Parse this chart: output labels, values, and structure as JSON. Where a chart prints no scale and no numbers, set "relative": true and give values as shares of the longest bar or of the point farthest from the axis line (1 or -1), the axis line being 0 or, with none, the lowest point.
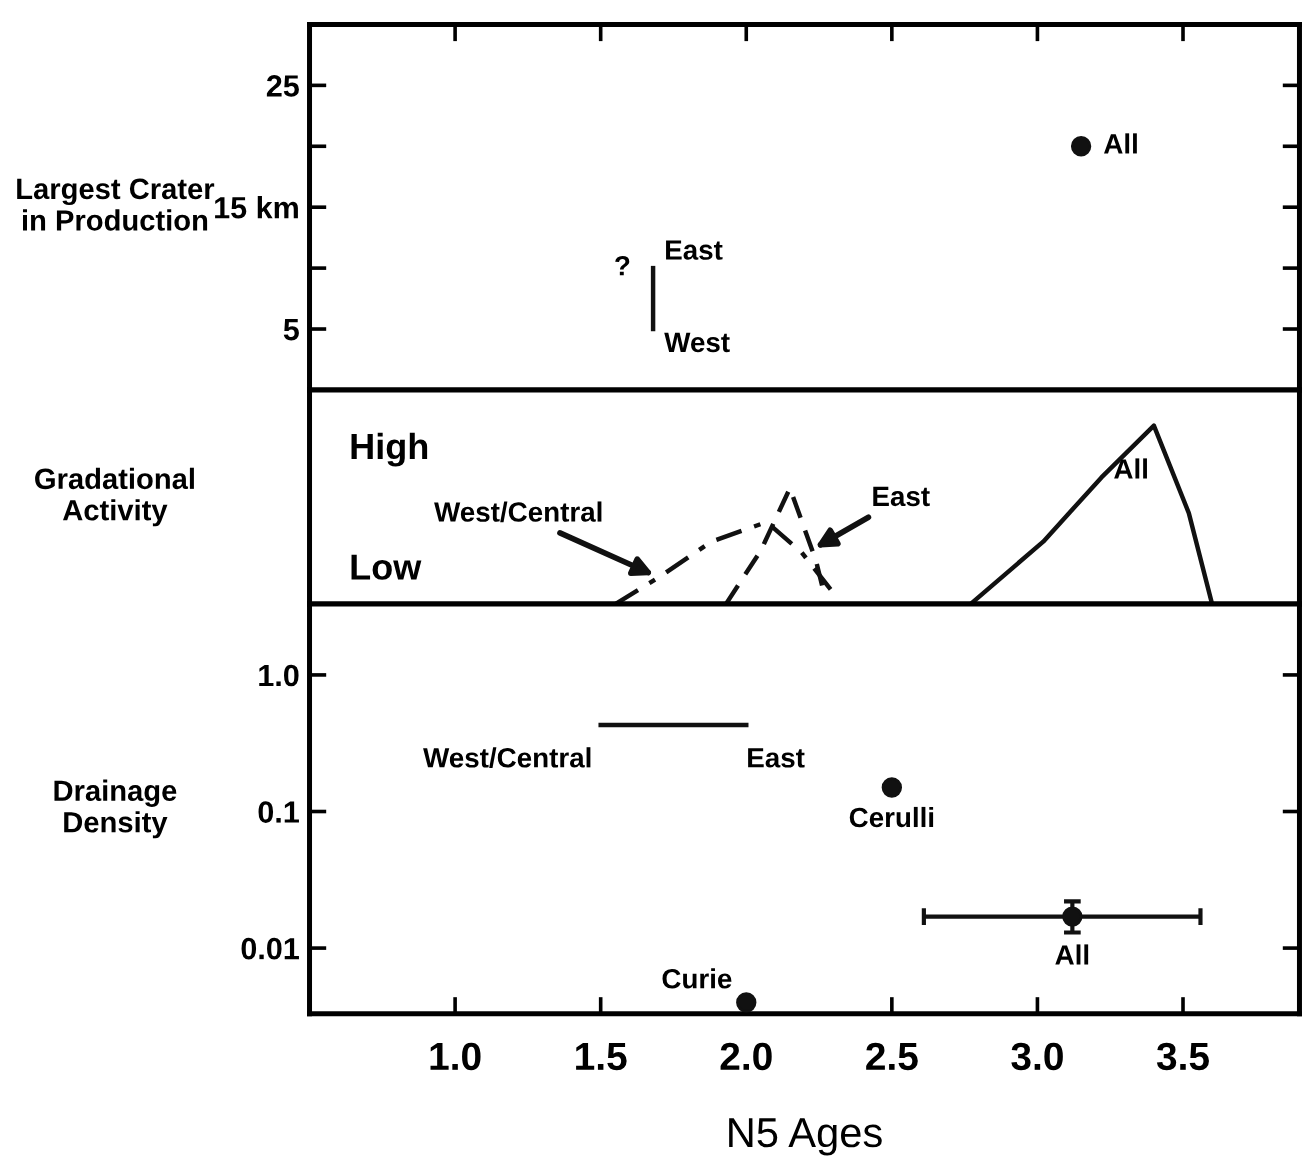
{
  "chart_data": [
    {
      "type": "scatter",
      "ylabel": "Largest Crater in Production",
      "xlim": [
        0.5,
        3.9
      ],
      "xticks": [
        {
          "value": 1,
          "label": null
        },
        {
          "value": 1.5,
          "label": null
        },
        {
          "value": 2,
          "label": null
        },
        {
          "value": 2.5,
          "label": null
        },
        {
          "value": 3,
          "label": null
        },
        {
          "value": 3.5,
          "label": null
        }
      ],
      "ylim": [
        0,
        30
      ],
      "yticks": [
        5,
        {
          "value": 10,
          "label": null
        },
        {
          "value": 15,
          "label": "15 km"
        },
        {
          "value": 20,
          "label": null
        },
        25
      ],
      "tick_labels": "y",
      "grid": false,
      "legend": false,
      "series": [
        {
          "color": "#111111",
          "marker": "circle",
          "x": [
            3.15
          ],
          "values": [
            20
          ]
        },
        {
          "type": "line",
          "color": "#111111",
          "x": [
            1.68,
            1.68
          ],
          "values": [
            5,
            10
          ]
        }
      ],
      "annotations": [
        {
          "text": "All",
          "x": 3.15,
          "y": 20
        },
        {
          "text": "?",
          "x": 1.68,
          "y": 10
        },
        {
          "text": "East",
          "x": 1.68,
          "y": 10
        },
        {
          "text": "West",
          "x": 1.68,
          "y": 5
        }
      ]
    },
    {
      "type": "line",
      "ylabel": "Gradational Activity",
      "relative": true,
      "xlim": [
        0.5,
        3.9
      ],
      "tick_labels": false,
      "grid": false,
      "legend": false,
      "series": [
        {
          "color": "#111111",
          "line_style": "dashdot",
          "x": [
            1.55,
            1.7,
            1.88,
            2.07,
            2.19,
            2.31
          ],
          "values": [
            0,
            0.15,
            0.35,
            0.46,
            0.29,
            0.04
          ]
        },
        {
          "color": "#111111",
          "line_style": "dashed",
          "x": [
            1.93,
            2.05,
            2.15,
            2.24,
            2.27
          ],
          "values": [
            0,
            0.3,
            0.65,
            0.24,
            0.04
          ]
        },
        {
          "color": "#111111",
          "line_style": "solid",
          "x": [
            2.77,
            3.02,
            3.22,
            3.4,
            3.52,
            3.6
          ],
          "values": [
            0,
            0.35,
            0.71,
            1.0,
            0.51,
            0
          ]
        }
      ],
      "annotations": [
        "High",
        "Low",
        {
          "text": "West/Central",
          "x": 1.7,
          "y": 0.15
        },
        {
          "text": "East",
          "x": 2.22,
          "y": 0.3
        },
        "All"
      ]
    },
    {
      "type": "scatter",
      "ylabel": "Drainage Density",
      "xlabel": "N5 Ages",
      "log": true,
      "xlim": [
        0.5,
        3.9
      ],
      "xticks": [
        {
          "value": 1,
          "label": "1.0"
        },
        1.5,
        {
          "value": 2,
          "label": "2.0"
        },
        2.5,
        {
          "value": 3,
          "label": "3.0"
        },
        3.5
      ],
      "ylim": [
        0.0033,
        3.3
      ],
      "yticks": [
        {
          "value": 1,
          "label": "1.0"
        },
        0.1,
        0.01
      ],
      "grid": false,
      "legend": false,
      "series": [
        {
          "type": "line",
          "color": "#111111",
          "x": [
            1.5,
            2.0
          ],
          "values": [
            0.43,
            0.43
          ]
        },
        {
          "color": "#111111",
          "marker": "circle",
          "x": [
            2.5
          ],
          "values": [
            0.15
          ]
        },
        {
          "color": "#111111",
          "marker": "circle",
          "x": [
            3.12
          ],
          "values": [
            0.017
          ],
          "errors": [
            [
              0.013,
              0.022
            ]
          ],
          "xerrors": [
            [
              2.61,
              3.56
            ]
          ]
        },
        {
          "color": "#111111",
          "marker": "circle",
          "x": [
            2.0
          ],
          "values": [
            0.004
          ]
        }
      ],
      "annotations": [
        {
          "text": "West/Central",
          "x": 1.5,
          "y": 0.43
        },
        {
          "text": "East",
          "x": 2.0,
          "y": 0.43
        },
        {
          "text": "Cerulli",
          "x": 2.5,
          "y": 0.15
        },
        {
          "text": "All",
          "x": 3.12,
          "y": 0.017
        },
        {
          "text": "Curie",
          "x": 2.0,
          "y": 0.004
        }
      ]
    }
  ]
}
